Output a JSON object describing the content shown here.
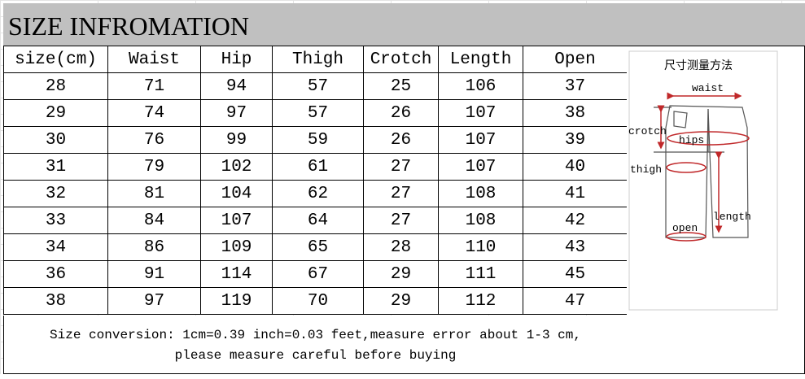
{
  "title": "SIZE INFROMATION",
  "table": {
    "headers": [
      "size(cm)",
      "Waist",
      "Hip",
      "Thigh",
      "Crotch",
      "Length",
      "Open"
    ],
    "rows": [
      [
        "28",
        "71",
        "94",
        "57",
        "25",
        "106",
        "37"
      ],
      [
        "29",
        "74",
        "97",
        "57",
        "26",
        "107",
        "38"
      ],
      [
        "30",
        "76",
        "99",
        "59",
        "26",
        "107",
        "39"
      ],
      [
        "31",
        "79",
        "102",
        "61",
        "27",
        "107",
        "40"
      ],
      [
        "32",
        "81",
        "104",
        "62",
        "27",
        "108",
        "41"
      ],
      [
        "33",
        "84",
        "107",
        "64",
        "27",
        "108",
        "42"
      ],
      [
        "34",
        "86",
        "109",
        "65",
        "28",
        "110",
        "43"
      ],
      [
        "36",
        "91",
        "114",
        "67",
        "29",
        "111",
        "45"
      ],
      [
        "38",
        "97",
        "119",
        "70",
        "29",
        "112",
        "47"
      ]
    ]
  },
  "footer": {
    "line1": "Size conversion: 1cm=0.39 inch=0.03 feet,measure error about 1-3 cm,",
    "line2": "please measure careful before buying"
  },
  "diagram": {
    "title": "尺寸测量方法",
    "labels": {
      "waist": "waist",
      "crotch": "crotch",
      "hips": "hips",
      "thigh": "thigh",
      "length": "length",
      "open": "open"
    },
    "arrow_color": "#c0282a"
  }
}
